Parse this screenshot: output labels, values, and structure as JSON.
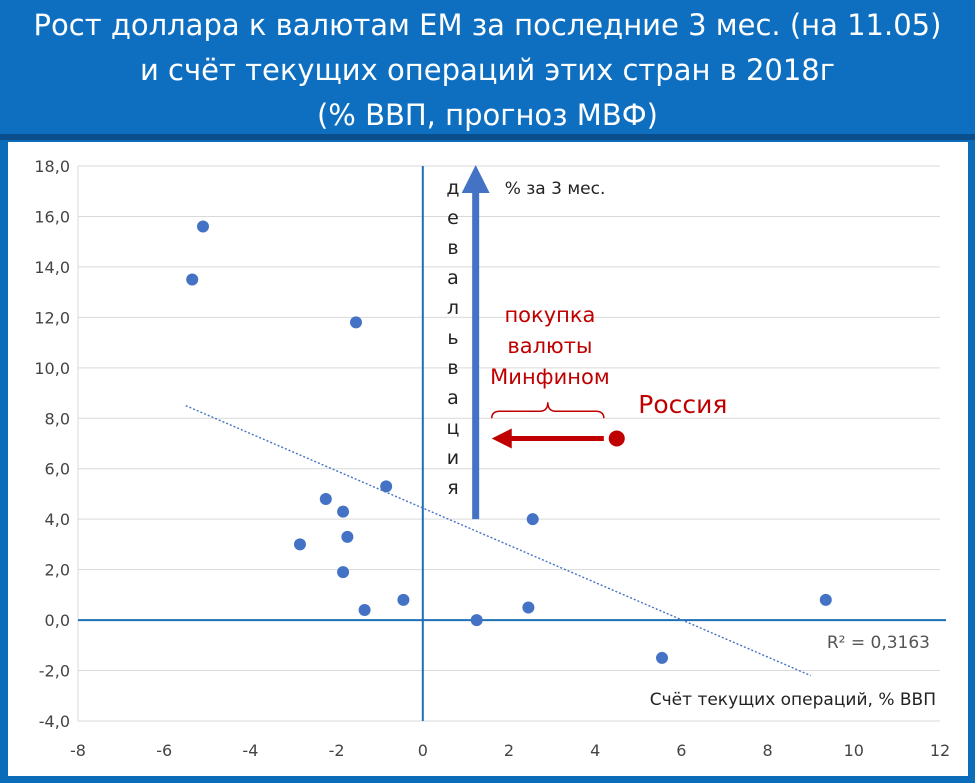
{
  "header": {
    "title_lines": [
      "Рост доллара к валютам ЕМ за последние 3 мес. (на 11.05)",
      "и счёт текущих операций этих стран в 2018г",
      "(% ВВП, прогноз МВФ)"
    ],
    "bg_color": "#0e6fc1"
  },
  "chart_data": {
    "type": "scatter",
    "title": "Рост доллара к валютам ЕМ за последние 3 мес. (на 11.05) и счёт текущих операций этих стран в 2018г (% ВВП, прогноз МВФ)",
    "xlabel": "Счёт текущих операций, % ВВП",
    "ylabel": "% за 3 мес.",
    "xlim": [
      -8,
      12
    ],
    "ylim": [
      -4,
      18
    ],
    "x_ticks": [
      "-8",
      "-6",
      "-4",
      "-2",
      "0",
      "2",
      "4",
      "6",
      "8",
      "10",
      "12"
    ],
    "y_ticks": [
      "-4,0",
      "-2,0",
      "0,0",
      "2,0",
      "4,0",
      "6,0",
      "8,0",
      "10,0",
      "12,0",
      "14,0",
      "16,0",
      "18,0"
    ],
    "grid": "horizontal",
    "series": [
      {
        "color": "#4472c4",
        "points": [
          {
            "x": -5.1,
            "y": 15.6
          },
          {
            "x": -5.35,
            "y": 13.5
          },
          {
            "x": -1.55,
            "y": 11.8
          },
          {
            "x": -0.85,
            "y": 5.3
          },
          {
            "x": -2.25,
            "y": 4.8
          },
          {
            "x": -1.85,
            "y": 4.3
          },
          {
            "x": -1.75,
            "y": 3.3
          },
          {
            "x": -2.85,
            "y": 3.0
          },
          {
            "x": -1.85,
            "y": 1.9
          },
          {
            "x": -0.45,
            "y": 0.8
          },
          {
            "x": -1.35,
            "y": 0.4
          },
          {
            "x": 1.25,
            "y": 0.0
          },
          {
            "x": 2.55,
            "y": 4.0
          },
          {
            "x": 2.45,
            "y": 0.5
          },
          {
            "x": 5.55,
            "y": -1.5
          },
          {
            "x": 9.35,
            "y": 0.8
          }
        ]
      }
    ],
    "highlight": {
      "label": "Россия",
      "x": 4.5,
      "y": 7.2,
      "color": "#c00000"
    },
    "trendline": {
      "x": [
        -5.5,
        9.0
      ],
      "y": [
        8.5,
        -2.2
      ],
      "r2_label": "R² = 0,3163",
      "color": "#4472c4"
    },
    "annotations": {
      "vertical_arrow_text": "девальвация",
      "vertical_arrow_caption": "% за 3 мес.",
      "mof_text": [
        "покупка",
        "валюты",
        "Минфином"
      ],
      "mof_arrow_from_x": 4.2,
      "mof_arrow_to_x": 1.6,
      "mof_arrow_y": 7.2,
      "vertical_arrow_x": 1.25,
      "vertical_arrow_from_y": 4.0,
      "vertical_arrow_to_y": 17.8
    }
  }
}
